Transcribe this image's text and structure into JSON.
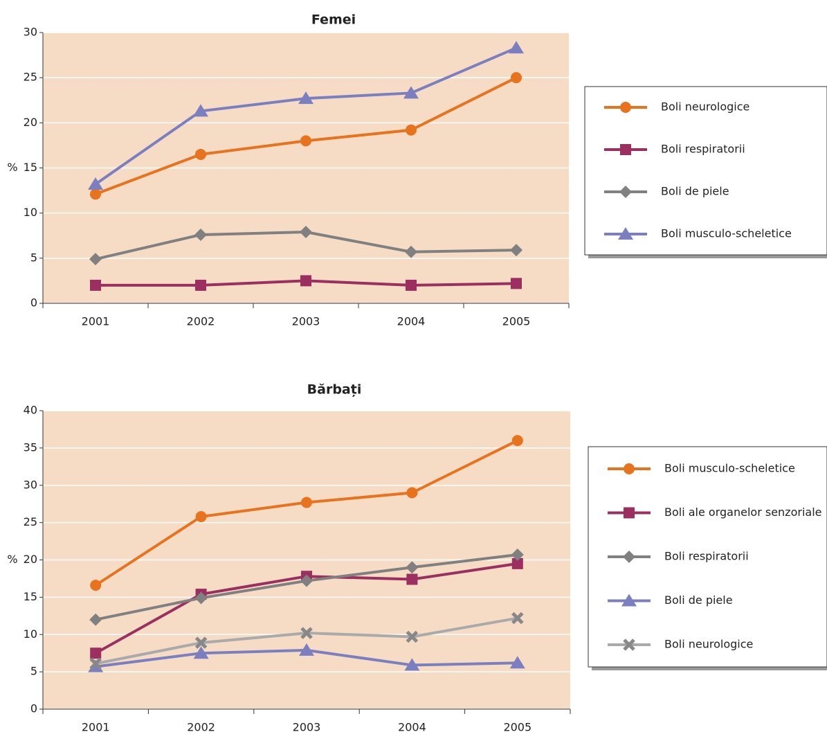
{
  "chart_data": [
    {
      "type": "line",
      "title": "Femei",
      "y_label": "%",
      "categories": [
        "2001",
        "2002",
        "2003",
        "2004",
        "2005"
      ],
      "ylim": [
        0,
        30
      ],
      "yticks": [
        0,
        5,
        10,
        15,
        20,
        25,
        30
      ],
      "grid": true,
      "legend": "right",
      "series": [
        {
          "name": "Boli neurologice",
          "color": "#e8731e",
          "marker": "circle",
          "values": [
            12.1,
            16.5,
            18,
            19.2,
            25
          ]
        },
        {
          "name": "Boli respiratorii",
          "color": "#9b2f5f",
          "marker": "square",
          "values": [
            2,
            2,
            2.5,
            2,
            2.2
          ]
        },
        {
          "name": "Boli de piele",
          "color": "#808080",
          "marker": "diamond",
          "values": [
            4.9,
            7.6,
            7.9,
            5.7,
            5.9
          ]
        },
        {
          "name": "Boli musculo-scheletice",
          "color": "#7b7fc0",
          "marker": "triangle",
          "values": [
            13.2,
            21.3,
            22.7,
            23.3,
            28.3
          ]
        }
      ]
    },
    {
      "type": "line",
      "title": "Bărbați",
      "y_label": "%",
      "categories": [
        "2001",
        "2002",
        "2003",
        "2004",
        "2005"
      ],
      "ylim": [
        0,
        40
      ],
      "yticks": [
        0,
        5,
        10,
        15,
        20,
        25,
        30,
        35,
        40
      ],
      "grid": true,
      "legend": "right",
      "series": [
        {
          "name": "Boli musculo-scheletice",
          "color": "#e8731e",
          "marker": "circle",
          "values": [
            16.6,
            25.8,
            27.7,
            29,
            36
          ]
        },
        {
          "name": "Boli ale organelor senzoriale",
          "color": "#9b2f5f",
          "marker": "square",
          "values": [
            7.5,
            15.4,
            17.8,
            17.4,
            19.5
          ]
        },
        {
          "name": "Boli respiratorii",
          "color": "#808080",
          "marker": "diamond",
          "values": [
            12,
            14.9,
            17.2,
            19,
            20.7
          ]
        },
        {
          "name": "Boli de piele",
          "color": "#7b7fc0",
          "marker": "triangle",
          "values": [
            5.7,
            7.5,
            7.9,
            5.9,
            6.2
          ]
        },
        {
          "name": "Boli neurologice",
          "color": "#aaaaaa",
          "marker": "x",
          "values": [
            6.1,
            8.9,
            10.2,
            9.7,
            12.2
          ]
        }
      ]
    }
  ]
}
